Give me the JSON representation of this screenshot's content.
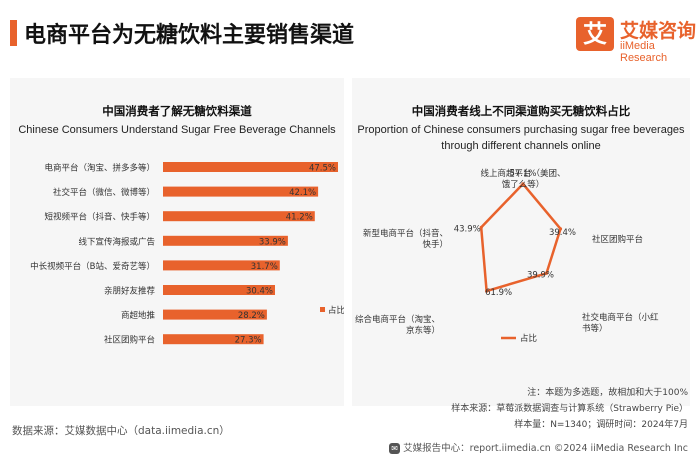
{
  "header": {
    "title": "电商平台为无糖饮料主要销售渠道",
    "logo_mark": "艾",
    "logo_cn": "艾媒咨询",
    "logo_en": "iiMedia Research",
    "accent_color": "#e8622c"
  },
  "chart_data": [
    {
      "type": "bar",
      "orientation": "horizontal",
      "title": "中国消费者了解无糖饮料渠道",
      "subtitle": "Chinese Consumers Understand Sugar Free Beverage Channels",
      "categories": [
        "电商平台（淘宝、拼多多等）",
        "社交平台（微信、微博等）",
        "短视频平台（抖音、快手等）",
        "线下宣传海报或广告",
        "中长视频平台（B站、爱奇艺等）",
        "亲朋好友推荐",
        "商超地推",
        "社区团购平台"
      ],
      "value_labels": [
        "47.5%",
        "42.1%",
        "41.2%",
        "33.9%",
        "31.7%",
        "30.4%",
        "28.2%",
        "27.3%"
      ],
      "series": [
        {
          "name": "占比",
          "values": [
            47.5,
            42.1,
            41.2,
            33.9,
            31.7,
            30.4,
            28.2,
            27.3
          ]
        }
      ],
      "legend": "right",
      "bar_color": "#e8622c"
    },
    {
      "type": "radar",
      "title": "中国消费者线上不同渠道购买无糖饮料占比",
      "subtitle": [
        "Proportion of Chinese consumers purchasing sugar free beverages",
        "through different channels online"
      ],
      "categories": [
        [
          "线上商超平台（美团、",
          "饿了么等）"
        ],
        [
          "社区团购平台"
        ],
        [
          "社交电商平台（小红",
          "书等）"
        ],
        [
          "综合电商平台（淘宝、",
          "京东等）"
        ],
        [
          "新型电商平台（抖音、",
          "快手）"
        ]
      ],
      "value_labels": [
        "57.1%",
        "39.4%",
        "39.9%",
        "61.9%",
        "43.9%"
      ],
      "series": [
        {
          "name": "占比",
          "values": [
            57.1,
            39.4,
            39.9,
            61.9,
            43.9
          ]
        }
      ],
      "legend": "bottom",
      "line_color": "#e8622c"
    }
  ],
  "source": "数据来源：艾媒数据中心（data.iimedia.cn）",
  "notes": [
    "注：本题为多选题，故相加和大于100%",
    "样本来源：草莓派数据调查与计算系统（Strawberry Pie）",
    "样本量：N=1340；调研时间：2024年7月"
  ],
  "footer": "艾媒报告中心：report.iimedia.cn ©2024 iiMedia Research Inc"
}
